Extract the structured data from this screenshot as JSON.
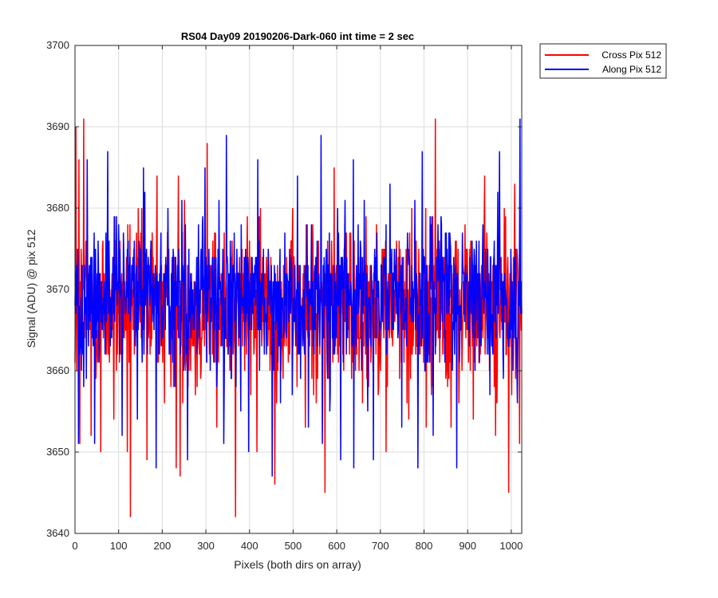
{
  "chart_data": {
    "type": "line",
    "title": "RS04 Day09 20190206-Dark-060 int time = 2 sec",
    "xlabel": "Pixels (both dirs on array)",
    "ylabel": "Signal (ADU) @ pix 512",
    "xlim": [
      0,
      1024
    ],
    "ylim": [
      3640,
      3700
    ],
    "xticks": [
      0,
      100,
      200,
      300,
      400,
      500,
      600,
      700,
      800,
      900,
      1000
    ],
    "yticks": [
      3640,
      3650,
      3660,
      3670,
      3680,
      3690,
      3700
    ],
    "grid": true,
    "legend_position": "outside-top-right",
    "series": [
      {
        "name": "Cross Pix 512",
        "color": "#ff0000",
        "mean": 3668,
        "spread": 5,
        "x": [
          2,
          4,
          9,
          11,
          20,
          37,
          59,
          89,
          120,
          127,
          165,
          188,
          205,
          232,
          237,
          241,
          251,
          276,
          303,
          325,
          368,
          417,
          458,
          528,
          573,
          594,
          713,
          765,
          805,
          826,
          862,
          880,
          913,
          939,
          964,
          994,
          1008,
          1019,
          1023
        ],
        "y": [
          3690,
          3660,
          3686,
          3651,
          3691,
          3652,
          3650,
          3654,
          3650,
          3642,
          3649,
          3684,
          3656,
          3648,
          3684,
          3647,
          3681,
          3657,
          3688,
          3653,
          3642,
          3650,
          3646,
          3653,
          3645,
          3685,
          3650,
          3654,
          3653,
          3691,
          3653,
          3656,
          3654,
          3684,
          3652,
          3645,
          3683,
          3651,
          3665
        ]
      },
      {
        "name": "Along Pix 512",
        "color": "#0000ff",
        "mean": 3669,
        "spread": 4.5,
        "x": [
          3,
          8,
          28,
          45,
          75,
          108,
          143,
          157,
          160,
          186,
          245,
          258,
          298,
          341,
          347,
          380,
          398,
          419,
          452,
          471,
          510,
          535,
          564,
          567,
          584,
          609,
          638,
          639,
          663,
          671,
          684,
          722,
          749,
          779,
          786,
          796,
          821,
          875,
          969,
          973,
          1014,
          1020,
          1023
        ],
        "y": [
          3672,
          3651,
          3686,
          3651,
          3687,
          3652,
          3654,
          3685,
          3682,
          3648,
          3681,
          3649,
          3685,
          3651,
          3689,
          3655,
          3650,
          3686,
          3647,
          3656,
          3684,
          3653,
          3689,
          3651,
          3655,
          3649,
          3686,
          3648,
          3681,
          3655,
          3649,
          3683,
          3653,
          3681,
          3648,
          3687,
          3652,
          3648,
          3682,
          3687,
          3656,
          3691,
          3671
        ]
      }
    ]
  }
}
